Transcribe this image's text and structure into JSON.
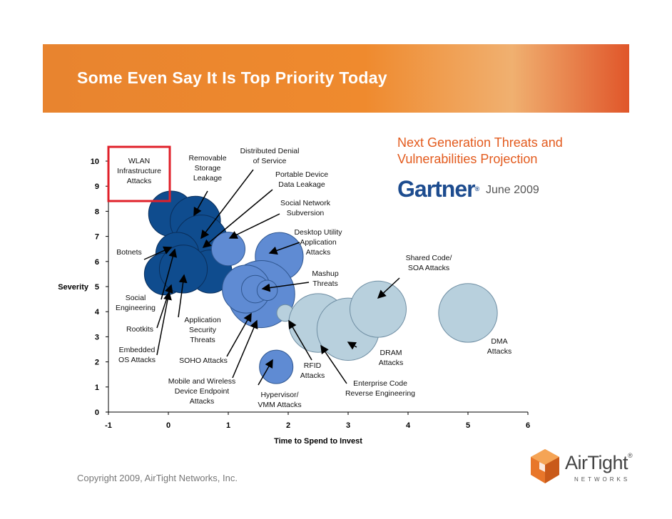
{
  "slide": {
    "title": "Some Even Say It Is Top Priority Today",
    "projection_line1": "Next Generation Threats and",
    "projection_line2": "Vulnerabilities Projection",
    "gartner": "Gartner",
    "gartner_reg": "®",
    "date": "June 2009",
    "copyright": "Copyright 2009, AirTight Networks, Inc.",
    "logo_name": "AirTight",
    "logo_reg": "®",
    "logo_sub": "NETWORKS",
    "colors": {
      "orange": "#ef8a2e",
      "red_box": "#e0202a",
      "dark_blue": "#114a8c",
      "mid_blue": "#5b87cf",
      "light_blue": "#b6cfdd"
    }
  },
  "chart_data": {
    "type": "scatter",
    "xlabel": "Time to Spend to Invest",
    "ylabel": "Severity",
    "xlim": [
      -1,
      6
    ],
    "ylim": [
      0,
      10
    ],
    "x_ticks": [
      "-1",
      "0",
      "1",
      "2",
      "3",
      "4",
      "5",
      "6"
    ],
    "y_ticks": [
      "0",
      "1",
      "2",
      "3",
      "4",
      "5",
      "6",
      "7",
      "8",
      "9",
      "10"
    ],
    "bubbles": [
      {
        "x": 0.05,
        "y": 7.9,
        "r": 0.38,
        "group": "dark"
      },
      {
        "x": 0.45,
        "y": 7.6,
        "r": 0.42,
        "group": "dark"
      },
      {
        "x": 0.55,
        "y": 6.8,
        "r": 0.44,
        "group": "dark"
      },
      {
        "x": 0.15,
        "y": 6.3,
        "r": 0.36,
        "group": "dark"
      },
      {
        "x": 0.25,
        "y": 5.6,
        "r": 0.34,
        "group": "dark"
      },
      {
        "x": -0.05,
        "y": 5.5,
        "r": 0.35,
        "group": "dark"
      },
      {
        "x": 0.7,
        "y": 5.6,
        "r": 0.36,
        "group": "dark"
      },
      {
        "x": 0.25,
        "y": 5.7,
        "r": 0.4,
        "group": "dark"
      },
      {
        "x": 1.0,
        "y": 6.5,
        "r": 0.28,
        "group": "mid"
      },
      {
        "x": 1.85,
        "y": 6.2,
        "r": 0.4,
        "group": "mid"
      },
      {
        "x": 1.55,
        "y": 4.7,
        "r": 0.56,
        "group": "mid"
      },
      {
        "x": 1.3,
        "y": 4.9,
        "r": 0.4,
        "group": "mid"
      },
      {
        "x": 1.45,
        "y": 4.9,
        "r": 0.23,
        "group": "mid"
      },
      {
        "x": 1.65,
        "y": 4.85,
        "r": 0.17,
        "group": "mid"
      },
      {
        "x": 1.8,
        "y": 1.8,
        "r": 0.28,
        "group": "mid"
      },
      {
        "x": 1.95,
        "y": 3.95,
        "r": 0.14,
        "group": "light"
      },
      {
        "x": 2.5,
        "y": 3.55,
        "r": 0.49,
        "group": "light"
      },
      {
        "x": 3.0,
        "y": 3.3,
        "r": 0.52,
        "group": "light"
      },
      {
        "x": 3.5,
        "y": 4.1,
        "r": 0.47,
        "group": "light"
      },
      {
        "x": 5.0,
        "y": 3.95,
        "r": 0.49,
        "group": "light"
      }
    ],
    "labels": [
      {
        "lines": [
          "WLAN",
          "Infrastructure",
          "Attacks"
        ]
      },
      {
        "lines": [
          "Removable",
          "Storage",
          "Leakage"
        ]
      },
      {
        "lines": [
          "Distributed Denial",
          "of Service"
        ]
      },
      {
        "lines": [
          "Portable Device",
          "Data Leakage"
        ]
      },
      {
        "lines": [
          "Social Network",
          "Subversion"
        ]
      },
      {
        "lines": [
          "Desktop Utility",
          "Application",
          "Attacks"
        ]
      },
      {
        "lines": [
          "Shared Code/",
          "SOA Attacks"
        ]
      },
      {
        "lines": [
          "Botnets"
        ]
      },
      {
        "lines": [
          "Mashup",
          "Threats"
        ]
      },
      {
        "lines": [
          "Social",
          "Engineering"
        ]
      },
      {
        "lines": [
          "Application",
          "Security",
          "Threats"
        ]
      },
      {
        "lines": [
          "Rootkits"
        ]
      },
      {
        "lines": [
          "Embedded",
          "OS Attacks"
        ]
      },
      {
        "lines": [
          "SOHO Attacks"
        ]
      },
      {
        "lines": [
          "DMA",
          "Attacks"
        ]
      },
      {
        "lines": [
          "DRAM",
          "Attacks"
        ]
      },
      {
        "lines": [
          "RFID",
          "Attacks"
        ]
      },
      {
        "lines": [
          "Enterprise Code",
          "Reverse Engineering"
        ]
      },
      {
        "lines": [
          "Mobile and Wireless",
          "Device Endpoint",
          "Attacks"
        ]
      },
      {
        "lines": [
          "Hypervisor/",
          "VMM Attacks"
        ]
      }
    ]
  }
}
